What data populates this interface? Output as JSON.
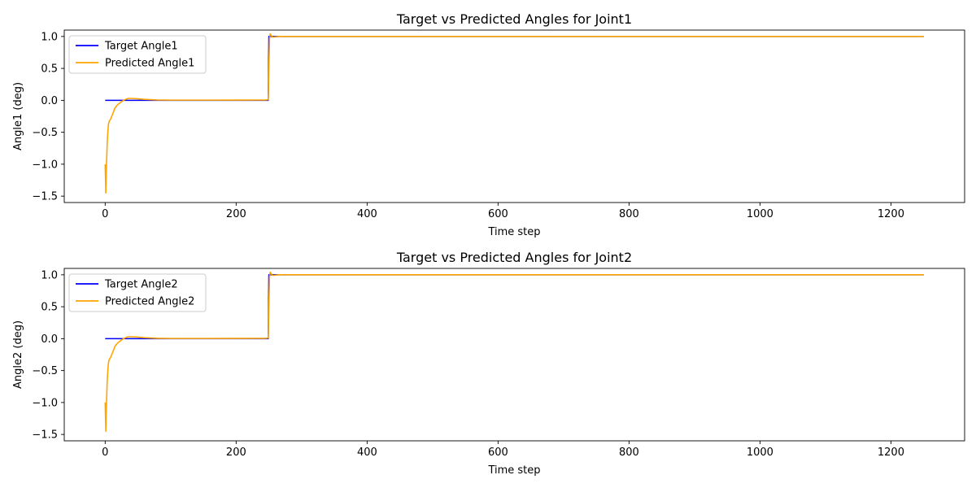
{
  "chart_data": [
    {
      "type": "line",
      "title": "Target vs Predicted Angles for Joint1",
      "xlabel": "Time step",
      "ylabel": "Angle1 (deg)",
      "xlim": [
        -62.5,
        1312.5
      ],
      "ylim": [
        -1.6,
        1.1
      ],
      "xticks": [
        0,
        200,
        400,
        600,
        800,
        1000,
        1200
      ],
      "yticks": [
        -1.5,
        -1.0,
        -0.5,
        0.0,
        0.5,
        1.0
      ],
      "ytick_labels": [
        "−1.5",
        "−1.0",
        "−0.5",
        "0.0",
        "0.5",
        "1.0"
      ],
      "grid": false,
      "legend": "upper-left",
      "series": [
        {
          "name": "Target Angle1",
          "color": "#0000ff",
          "x": [
            0,
            249,
            250,
            1250
          ],
          "y": [
            0,
            0,
            1,
            1
          ]
        },
        {
          "name": "Predicted Angle1",
          "color": "#ffa500",
          "x": [
            0,
            1,
            2,
            3,
            4,
            5,
            6,
            8,
            10,
            12,
            15,
            18,
            20,
            25,
            30,
            35,
            40,
            50,
            60,
            70,
            80,
            100,
            150,
            200,
            245,
            249,
            250,
            251,
            252,
            254,
            256,
            260,
            265,
            270,
            300,
            400,
            600,
            800,
            1000,
            1250
          ],
          "y": [
            -1.0,
            -1.45,
            -1.0,
            -0.7,
            -0.5,
            -0.38,
            -0.33,
            -0.3,
            -0.25,
            -0.2,
            -0.12,
            -0.08,
            -0.06,
            -0.02,
            0.01,
            0.03,
            0.03,
            0.025,
            0.015,
            0.01,
            0.005,
            0.003,
            0.003,
            0.004,
            0.005,
            0.01,
            0.5,
            0.97,
            1.04,
            1.01,
            0.99,
            0.995,
            1.0,
            1.0,
            1.0,
            1.0,
            1.0,
            1.0,
            1.0,
            1.0
          ]
        }
      ]
    },
    {
      "type": "line",
      "title": "Target vs Predicted Angles for Joint2",
      "xlabel": "Time step",
      "ylabel": "Angle2 (deg)",
      "xlim": [
        -62.5,
        1312.5
      ],
      "ylim": [
        -1.6,
        1.1
      ],
      "xticks": [
        0,
        200,
        400,
        600,
        800,
        1000,
        1200
      ],
      "yticks": [
        -1.5,
        -1.0,
        -0.5,
        0.0,
        0.5,
        1.0
      ],
      "ytick_labels": [
        "−1.5",
        "−1.0",
        "−0.5",
        "0.0",
        "0.5",
        "1.0"
      ],
      "grid": false,
      "legend": "upper-left",
      "series": [
        {
          "name": "Target Angle2",
          "color": "#0000ff",
          "x": [
            0,
            249,
            250,
            1250
          ],
          "y": [
            0,
            0,
            1,
            1
          ]
        },
        {
          "name": "Predicted Angle2",
          "color": "#ffa500",
          "x": [
            0,
            1,
            2,
            3,
            4,
            5,
            6,
            8,
            10,
            12,
            15,
            18,
            20,
            25,
            30,
            35,
            40,
            50,
            60,
            70,
            80,
            100,
            150,
            200,
            245,
            249,
            250,
            251,
            252,
            254,
            256,
            260,
            265,
            270,
            300,
            400,
            600,
            800,
            1000,
            1250
          ],
          "y": [
            -1.0,
            -1.45,
            -1.0,
            -0.7,
            -0.5,
            -0.38,
            -0.33,
            -0.3,
            -0.25,
            -0.2,
            -0.12,
            -0.08,
            -0.06,
            -0.02,
            0.01,
            0.03,
            0.03,
            0.025,
            0.015,
            0.01,
            0.005,
            0.003,
            0.003,
            0.004,
            0.005,
            0.01,
            0.5,
            0.97,
            1.04,
            1.01,
            0.99,
            0.995,
            1.0,
            1.0,
            1.0,
            1.0,
            1.0,
            1.0,
            1.0,
            1.0
          ]
        }
      ]
    }
  ]
}
